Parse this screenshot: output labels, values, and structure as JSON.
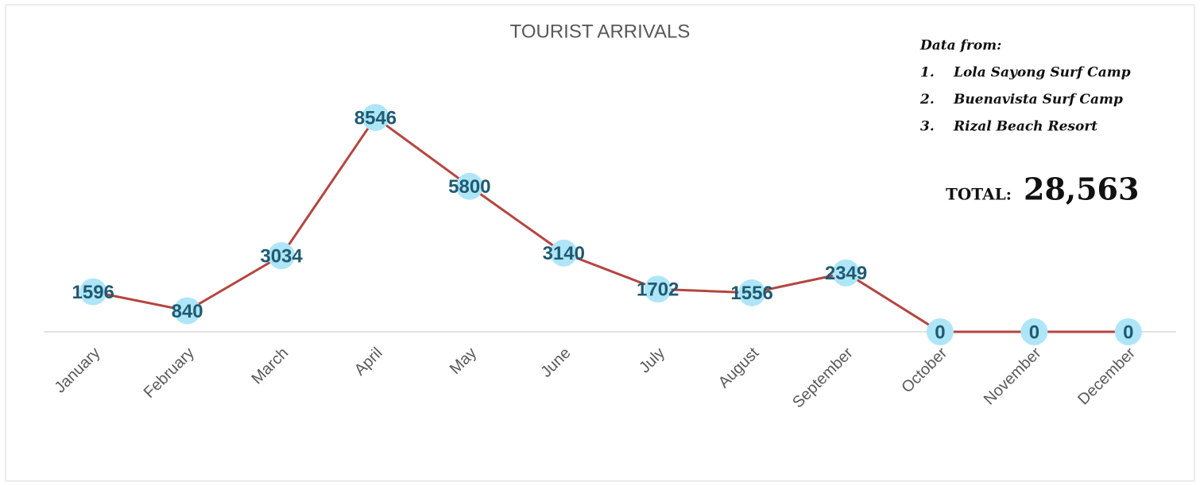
{
  "chart_data": {
    "type": "line",
    "title": "TOURIST ARRIVALS",
    "categories": [
      "January",
      "February",
      "March",
      "April",
      "May",
      "June",
      "July",
      "August",
      "September",
      "October",
      "November",
      "December"
    ],
    "values": [
      1596,
      840,
      3034,
      8546,
      5800,
      3140,
      1702,
      1556,
      2349,
      0,
      0,
      0
    ],
    "color": "#b5453f",
    "marker_color": "#aee6f7",
    "ylim": [
      0,
      10000
    ],
    "source_heading": "Data from:",
    "sources": [
      {
        "number": "1.",
        "name": "Lola Sayong Surf Camp"
      },
      {
        "number": "2.",
        "name": "Buenavista Surf Camp"
      },
      {
        "number": "3.",
        "name": "Rizal Beach Resort"
      }
    ],
    "total_label": "TOTAL:",
    "total_value": "28,563"
  }
}
